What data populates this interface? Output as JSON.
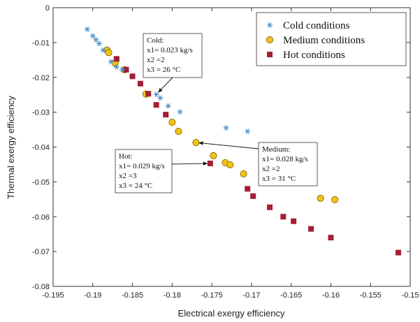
{
  "chart_data": {
    "type": "scatter",
    "xlabel": "Electrical exergy efficiency",
    "ylabel": "Thermal exergy efficiency",
    "xlim": [
      -0.195,
      -0.15
    ],
    "ylim": [
      -0.08,
      0
    ],
    "xticks": [
      -0.195,
      -0.19,
      -0.185,
      -0.18,
      -0.175,
      -0.17,
      -0.165,
      -0.16,
      -0.155,
      -0.15
    ],
    "yticks": [
      0,
      -0.01,
      -0.02,
      -0.03,
      -0.04,
      -0.05,
      -0.06,
      -0.07,
      -0.08
    ],
    "xtick_labels": [
      "-0.195",
      "-0.19",
      "-0.185",
      "-0.18",
      "-0.175",
      "-0.17",
      "-0.165",
      "-0.16",
      "-0.155",
      "-0.15"
    ],
    "ytick_labels": [
      "0",
      "-0.01",
      "-0.02",
      "-0.03",
      "-0.04",
      "-0.05",
      "-0.06",
      "-0.07",
      "-0.08"
    ],
    "grid": false,
    "legend_position": "top-right",
    "series": [
      {
        "name": "Cold conditions",
        "marker": "asterisk",
        "color": "#4a90c8",
        "points": [
          [
            -0.1907,
            -0.0062
          ],
          [
            -0.19,
            -0.0081
          ],
          [
            -0.1896,
            -0.0092
          ],
          [
            -0.1892,
            -0.0103
          ],
          [
            -0.1887,
            -0.0122
          ],
          [
            -0.1877,
            -0.0155
          ],
          [
            -0.187,
            -0.017
          ],
          [
            -0.1863,
            -0.0178
          ],
          [
            -0.182,
            -0.0249
          ],
          [
            -0.1815,
            -0.0259
          ],
          [
            -0.1805,
            -0.0282
          ],
          [
            -0.179,
            -0.0299
          ],
          [
            -0.1732,
            -0.0345
          ],
          [
            -0.1705,
            -0.0355
          ]
        ]
      },
      {
        "name": "Medium conditions",
        "marker": "circle",
        "color": "#f2c318",
        "points": [
          [
            -0.1882,
            -0.0122
          ],
          [
            -0.188,
            -0.0129
          ],
          [
            -0.1872,
            -0.0159
          ],
          [
            -0.186,
            -0.0178
          ],
          [
            -0.1833,
            -0.0248
          ],
          [
            -0.18,
            -0.0329
          ],
          [
            -0.1792,
            -0.0355
          ],
          [
            -0.177,
            -0.0387
          ],
          [
            -0.1748,
            -0.0425
          ],
          [
            -0.1733,
            -0.0445
          ],
          [
            -0.1727,
            -0.0451
          ],
          [
            -0.171,
            -0.0477
          ],
          [
            -0.1613,
            -0.0547
          ],
          [
            -0.1595,
            -0.0551
          ]
        ]
      },
      {
        "name": "Hot conditions",
        "marker": "square",
        "color": "#a31f34",
        "points": [
          [
            -0.187,
            -0.0147
          ],
          [
            -0.1858,
            -0.0178
          ],
          [
            -0.185,
            -0.0197
          ],
          [
            -0.184,
            -0.0218
          ],
          [
            -0.183,
            -0.0247
          ],
          [
            -0.182,
            -0.0279
          ],
          [
            -0.1808,
            -0.0307
          ],
          [
            -0.1752,
            -0.0447
          ],
          [
            -0.1705,
            -0.052
          ],
          [
            -0.1698,
            -0.0541
          ],
          [
            -0.1677,
            -0.0573
          ],
          [
            -0.166,
            -0.06
          ],
          [
            -0.1647,
            -0.0613
          ],
          [
            -0.1625,
            -0.0635
          ],
          [
            -0.16,
            -0.066
          ],
          [
            -0.1515,
            -0.0703
          ]
        ]
      }
    ],
    "annotations": [
      {
        "name": "annotation-cold",
        "lines": [
          "Cold:",
          "x1= 0.023 kg/s",
          "x2 =2",
          "x3 = 26 °C"
        ],
        "target": [
          -0.182,
          -0.0249
        ]
      },
      {
        "name": "annotation-hot",
        "lines": [
          "Hot:",
          "x1= 0.029 kg/s",
          "x2 =3",
          "x3 = 24 °C"
        ],
        "target": [
          -0.1752,
          -0.0447
        ]
      },
      {
        "name": "annotation-medium",
        "lines": [
          "Medium:",
          "x1= 0.028 kg/s",
          "x2 =2",
          "x3 = 31 °C"
        ],
        "target": [
          -0.177,
          -0.0387
        ]
      }
    ]
  }
}
